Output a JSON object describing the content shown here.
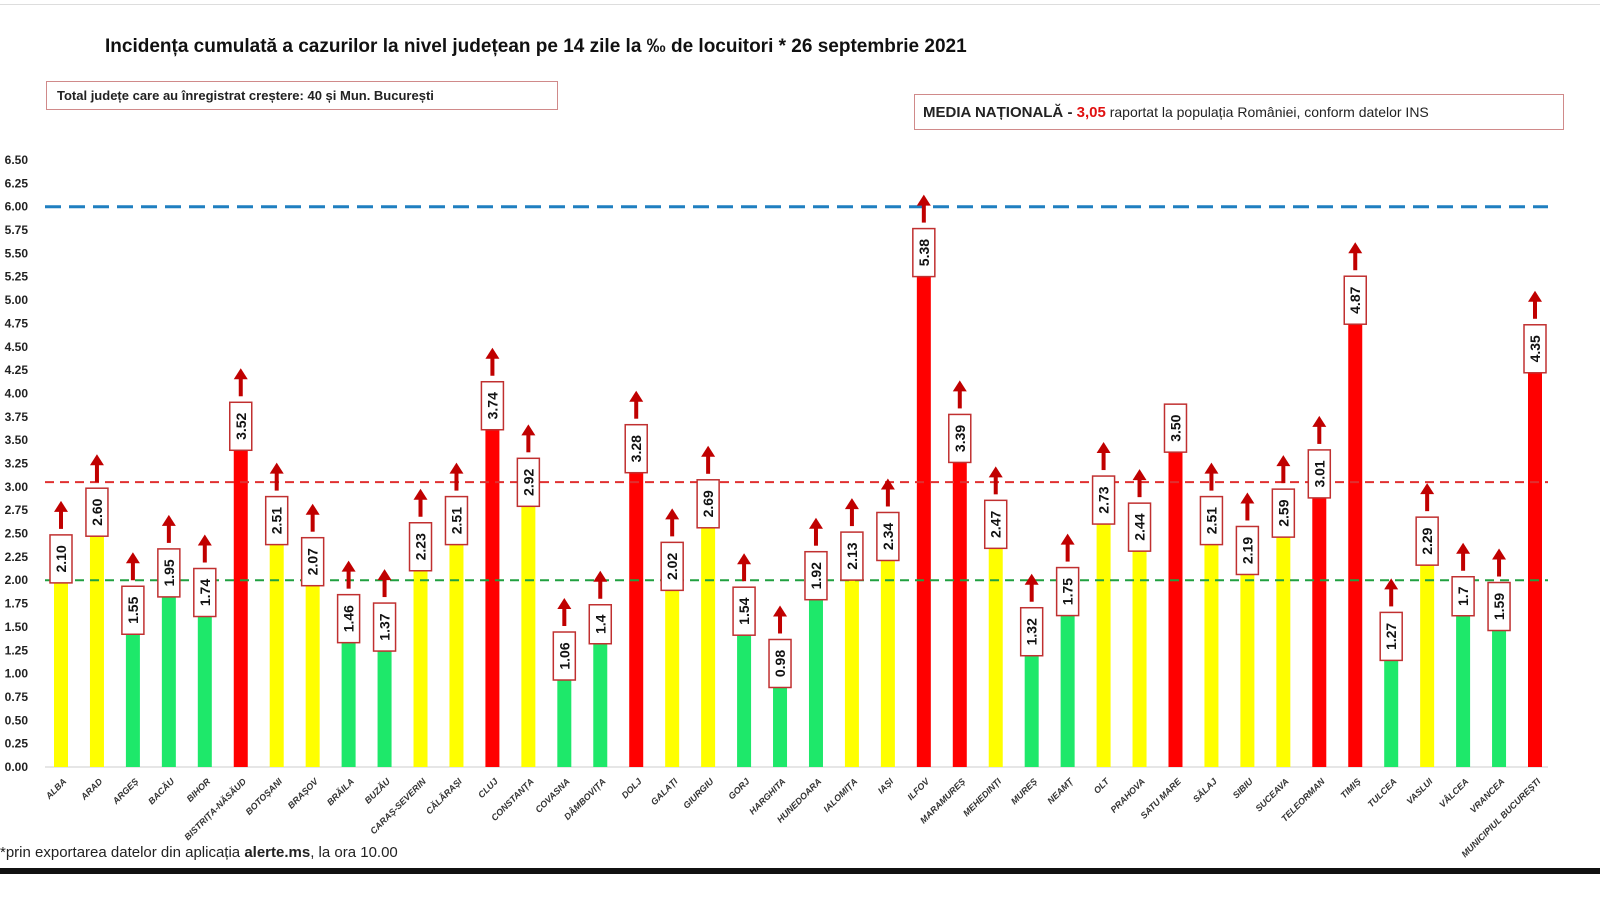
{
  "chart_data": {
    "type": "bar",
    "title": "Incidența cumulată a cazurilor la nivel județean pe 14 zile la ‰ de locuitori * 26 septembrie 2021",
    "xlabel": "",
    "ylabel": "",
    "ylim": [
      0,
      6.5
    ],
    "ytick_step": 0.25,
    "yticks": [
      "0.00",
      "0.25",
      "0.50",
      "0.75",
      "1.00",
      "1.25",
      "1.50",
      "1.75",
      "2.00",
      "2.25",
      "2.50",
      "2.75",
      "3.00",
      "3.25",
      "3.50",
      "3.75",
      "4.00",
      "4.25",
      "4.50",
      "4.75",
      "5.00",
      "5.25",
      "5.50",
      "5.75",
      "6.00",
      "6.25",
      "6.50"
    ],
    "categories": [
      "ALBA",
      "ARAD",
      "ARGEȘ",
      "BACĂU",
      "BIHOR",
      "BISTRIȚA-NĂSĂUD",
      "BOTOȘANI",
      "BRAȘOV",
      "BRĂILA",
      "BUZĂU",
      "CARAȘ-SEVERIN",
      "CĂLĂRAȘI",
      "CLUJ",
      "CONSTANȚA",
      "COVASNA",
      "DÂMBOVIȚA",
      "DOLJ",
      "GALAȚI",
      "GIURGIU",
      "GORJ",
      "HARGHITA",
      "HUNEDOARA",
      "IALOMIȚA",
      "IAȘI",
      "ILFOV",
      "MARAMUREȘ",
      "MEHEDINȚI",
      "MUREȘ",
      "NEAMȚ",
      "OLT",
      "PRAHOVA",
      "SATU MARE",
      "SĂLAJ",
      "SIBIU",
      "SUCEAVA",
      "TELEORMAN",
      "TIMIȘ",
      "TULCEA",
      "VASLUI",
      "VÂLCEA",
      "VRANCEA",
      "MUNICIPIUL BUCUREȘTI"
    ],
    "values": [
      2.1,
      2.6,
      1.55,
      1.95,
      1.74,
      3.52,
      2.51,
      2.07,
      1.46,
      1.37,
      2.23,
      2.51,
      3.74,
      2.92,
      1.06,
      1.4,
      3.28,
      2.02,
      2.69,
      1.54,
      0.98,
      1.92,
      2.13,
      2.34,
      5.38,
      3.39,
      2.47,
      1.32,
      1.75,
      2.73,
      2.44,
      3.5,
      2.51,
      2.19,
      2.59,
      3.01,
      4.87,
      1.27,
      2.29,
      1.7,
      1.59,
      4.35
    ],
    "value_labels": [
      "2.10",
      "2.60",
      "1.55",
      "1.95",
      "1.74",
      "3.52",
      "2.51",
      "2.07",
      "1.46",
      "1.37",
      "2.23",
      "2.51",
      "3.74",
      "2.92",
      "1.06",
      "1.4",
      "3.28",
      "2.02",
      "2.69",
      "1.54",
      "0.98",
      "1.92",
      "2.13",
      "2.34",
      "5.38",
      "3.39",
      "2.47",
      "1.32",
      "1.75",
      "2.73",
      "2.44",
      "3.50",
      "2.51",
      "2.19",
      "2.59",
      "3.01",
      "4.87",
      "1.27",
      "2.29",
      "1.7",
      "1.59",
      "4.35"
    ],
    "increase_arrow": [
      true,
      true,
      true,
      true,
      true,
      true,
      true,
      true,
      true,
      true,
      true,
      true,
      true,
      true,
      true,
      true,
      true,
      true,
      true,
      true,
      true,
      true,
      true,
      true,
      true,
      true,
      true,
      true,
      true,
      true,
      true,
      false,
      true,
      true,
      true,
      true,
      true,
      true,
      true,
      true,
      true,
      true
    ],
    "color_thresholds": {
      "green_below": 2.0,
      "yellow_below": 3.0
    },
    "reference_lines": [
      {
        "value": 6.0,
        "color": "#1f7fc0",
        "style": "dashed"
      },
      {
        "value": 3.05,
        "color": "#e03030",
        "style": "dashed"
      },
      {
        "value": 2.0,
        "color": "#20a040",
        "style": "dashed"
      }
    ],
    "grid": false
  },
  "colors": {
    "green": "#1ee86a",
    "yellow": "#ffff00",
    "red": "#ff0000",
    "arrow": "#c00000",
    "label_border": "#c03030"
  },
  "annotations": {
    "total_box": "Total județe care au înregistrat creștere:  40 și Mun. București",
    "media_label": "MEDIA NAȚIONALĂ",
    "media_dash": " - ",
    "media_value": "3,05",
    "media_text": " raportat la populația României, conform datelor INS"
  },
  "footer": {
    "prefix": "*prin exportarea datelor din aplicația ",
    "app": "alerte.ms",
    "suffix": ", la ora 10.00"
  }
}
